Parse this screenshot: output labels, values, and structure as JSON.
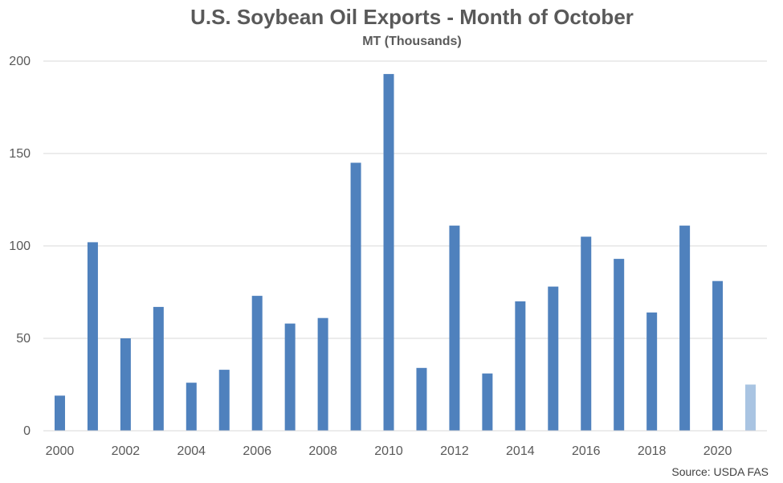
{
  "chart_data": {
    "type": "bar",
    "title": "U.S. Soybean Oil Exports - Month of October",
    "subtitle": "MT (Thousands)",
    "categories": [
      "2000",
      "2001",
      "2002",
      "2003",
      "2004",
      "2005",
      "2006",
      "2007",
      "2008",
      "2009",
      "2010",
      "2011",
      "2012",
      "2013",
      "2014",
      "2015",
      "2016",
      "2017",
      "2018",
      "2019",
      "2020",
      "2021"
    ],
    "x_tick_labels": [
      "2000",
      "2002",
      "2004",
      "2006",
      "2008",
      "2010",
      "2012",
      "2014",
      "2016",
      "2018",
      "2020"
    ],
    "values": [
      19,
      102,
      50,
      67,
      26,
      33,
      73,
      58,
      61,
      145,
      193,
      34,
      111,
      31,
      70,
      78,
      105,
      93,
      64,
      111,
      81,
      25
    ],
    "ylim": [
      0,
      200
    ],
    "y_ticks": [
      0,
      50,
      100,
      150,
      200
    ],
    "grid": "horizontal",
    "bar_color": "#4f81bd",
    "highlight_color": "#a9c4e2",
    "highlight_index": 21,
    "source": "Source: USDA FAS"
  }
}
